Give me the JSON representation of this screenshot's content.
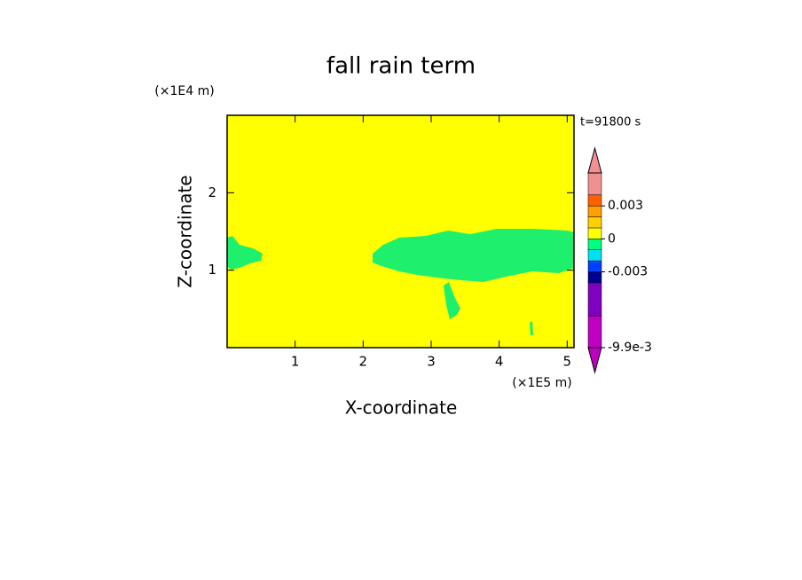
{
  "chart_data": {
    "type": "contour",
    "title": "fall rain term",
    "x_label": "X-coordinate",
    "y_label": "Z-coordinate",
    "x_unit": "(×1E5 m)",
    "y_unit": "(×1E4 m)",
    "annotation": "t=91800 s",
    "xlim": [
      0,
      5.1
    ],
    "ylim": [
      0,
      3
    ],
    "xticks": [
      1,
      2,
      3,
      4,
      5
    ],
    "yticks": [
      1,
      2
    ],
    "background_color": "#ffff00",
    "colorbar": {
      "bounds": [
        -0.0099,
        -0.007,
        -0.004,
        -0.003,
        -0.002,
        -0.001,
        0,
        0.001,
        0.002,
        0.003,
        0.004,
        0.006
      ],
      "colors": [
        "#c000c0",
        "#8000c0",
        "#000090",
        "#0040ff",
        "#00e0f0",
        "#00ff80",
        "#ffff00",
        "#ffd000",
        "#ffa000",
        "#ff6000",
        "#f09090"
      ],
      "ticks": [
        0.003,
        0,
        -0.003,
        {
          "value": -0.0099,
          "label": "-9.9e-3"
        }
      ]
    }
  }
}
